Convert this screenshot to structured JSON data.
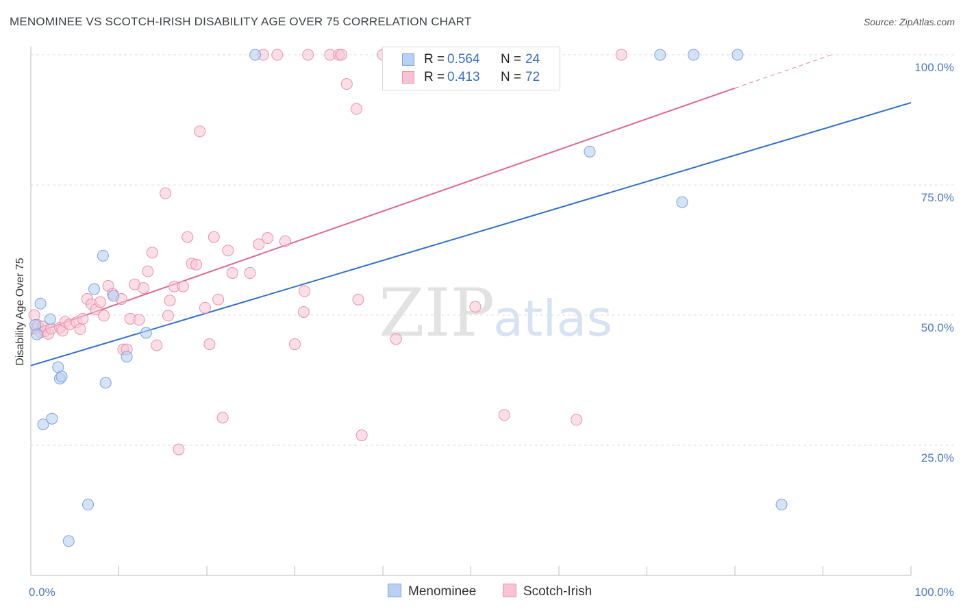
{
  "title": "MENOMINEE VS SCOTCH-IRISH DISABILITY AGE OVER 75 CORRELATION CHART",
  "source": "Source: ZipAtlas.com",
  "watermark": {
    "zip": "ZIP",
    "atlas": "atlas"
  },
  "colors": {
    "menominee_fill": "#b9d0f2",
    "menominee_stroke": "#7aa3de",
    "menominee_line": "#2f6fcf",
    "scotch_fill": "#f8c4d4",
    "scotch_stroke": "#e990ac",
    "scotch_line": "#e0668f",
    "grid": "#dddddd",
    "axis_text": "#4a78c4"
  },
  "legend_top": {
    "rows": [
      {
        "r_label": "R =",
        "r_value": "0.564",
        "n_label": "N =",
        "n_value": "24"
      },
      {
        "r_label": "R =",
        "r_value": "0.413",
        "n_label": "N =",
        "n_value": "72"
      }
    ]
  },
  "legend_bottom": {
    "items": [
      "Menominee",
      "Scotch-Irish"
    ]
  },
  "chart_data": {
    "type": "scatter",
    "title": "MENOMINEE VS SCOTCH-IRISH DISABILITY AGE OVER 75 CORRELATION CHART",
    "xlabel": "",
    "ylabel": "Disability Age Over 75",
    "xlim": [
      0,
      100
    ],
    "ylim": [
      0,
      100
    ],
    "x_tick_labels": [
      "0.0%",
      "100.0%"
    ],
    "y_ticks": [
      25,
      50,
      75,
      100
    ],
    "y_tick_labels": [
      "25.0%",
      "50.0%",
      "75.0%",
      "100.0%"
    ],
    "series": [
      {
        "name": "Menominee",
        "R": 0.564,
        "N": 24,
        "trend": {
          "x": [
            0,
            100
          ],
          "y": [
            40.3,
            90.8
          ]
        },
        "points": [
          {
            "x": 0.5,
            "y": 48.1
          },
          {
            "x": 0.7,
            "y": 46.3
          },
          {
            "x": 1.1,
            "y": 52.2
          },
          {
            "x": 1.4,
            "y": 29.0
          },
          {
            "x": 2.2,
            "y": 49.2
          },
          {
            "x": 2.4,
            "y": 30.1
          },
          {
            "x": 3.1,
            "y": 40.0
          },
          {
            "x": 3.3,
            "y": 37.8
          },
          {
            "x": 3.5,
            "y": 38.2
          },
          {
            "x": 4.3,
            "y": 6.6
          },
          {
            "x": 6.5,
            "y": 13.6
          },
          {
            "x": 7.2,
            "y": 55.0
          },
          {
            "x": 8.2,
            "y": 61.4
          },
          {
            "x": 8.5,
            "y": 37.0
          },
          {
            "x": 9.4,
            "y": 53.7
          },
          {
            "x": 10.9,
            "y": 42.0
          },
          {
            "x": 13.1,
            "y": 46.6
          },
          {
            "x": 25.5,
            "y": 100.0
          },
          {
            "x": 63.5,
            "y": 81.4
          },
          {
            "x": 71.5,
            "y": 100.0
          },
          {
            "x": 74.0,
            "y": 71.7
          },
          {
            "x": 75.3,
            "y": 100.0
          },
          {
            "x": 80.3,
            "y": 100.0
          },
          {
            "x": 85.3,
            "y": 13.6
          }
        ]
      },
      {
        "name": "Scotch-Irish",
        "R": 0.413,
        "N": 72,
        "trend": {
          "x": [
            0,
            80
          ],
          "y": [
            46.3,
            93.6
          ]
        },
        "trend_dashed": {
          "x": [
            80,
            91
          ],
          "y": [
            93.6,
            100.0
          ]
        },
        "points": [
          {
            "x": 0.4,
            "y": 50.0
          },
          {
            "x": 0.6,
            "y": 47.5
          },
          {
            "x": 0.8,
            "y": 48.1
          },
          {
            "x": 1.1,
            "y": 46.7
          },
          {
            "x": 1.4,
            "y": 47.8
          },
          {
            "x": 1.6,
            "y": 46.9
          },
          {
            "x": 2.0,
            "y": 46.4
          },
          {
            "x": 2.3,
            "y": 47.4
          },
          {
            "x": 3.3,
            "y": 47.6
          },
          {
            "x": 3.6,
            "y": 47.0
          },
          {
            "x": 3.9,
            "y": 48.7
          },
          {
            "x": 4.4,
            "y": 48.2
          },
          {
            "x": 5.2,
            "y": 48.6
          },
          {
            "x": 5.6,
            "y": 47.3
          },
          {
            "x": 5.9,
            "y": 49.3
          },
          {
            "x": 6.4,
            "y": 53.1
          },
          {
            "x": 6.9,
            "y": 52.1
          },
          {
            "x": 7.4,
            "y": 51.1
          },
          {
            "x": 7.9,
            "y": 52.5
          },
          {
            "x": 8.3,
            "y": 49.9
          },
          {
            "x": 8.8,
            "y": 55.6
          },
          {
            "x": 9.3,
            "y": 54.1
          },
          {
            "x": 10.3,
            "y": 53.1
          },
          {
            "x": 10.5,
            "y": 43.4
          },
          {
            "x": 10.9,
            "y": 43.4
          },
          {
            "x": 11.3,
            "y": 49.3
          },
          {
            "x": 11.8,
            "y": 55.9
          },
          {
            "x": 12.3,
            "y": 49.1
          },
          {
            "x": 12.8,
            "y": 55.2
          },
          {
            "x": 13.3,
            "y": 58.4
          },
          {
            "x": 13.8,
            "y": 62.0
          },
          {
            "x": 14.3,
            "y": 44.2
          },
          {
            "x": 15.3,
            "y": 73.4
          },
          {
            "x": 15.6,
            "y": 49.9
          },
          {
            "x": 15.8,
            "y": 52.8
          },
          {
            "x": 16.3,
            "y": 55.5
          },
          {
            "x": 16.8,
            "y": 24.2
          },
          {
            "x": 17.3,
            "y": 55.5
          },
          {
            "x": 17.8,
            "y": 65.0
          },
          {
            "x": 18.3,
            "y": 59.9
          },
          {
            "x": 18.8,
            "y": 59.7
          },
          {
            "x": 19.2,
            "y": 85.3
          },
          {
            "x": 19.8,
            "y": 51.4
          },
          {
            "x": 20.3,
            "y": 44.4
          },
          {
            "x": 20.8,
            "y": 65.0
          },
          {
            "x": 21.3,
            "y": 53.0
          },
          {
            "x": 21.8,
            "y": 30.3
          },
          {
            "x": 22.4,
            "y": 62.4
          },
          {
            "x": 22.9,
            "y": 58.1
          },
          {
            "x": 24.9,
            "y": 58.1
          },
          {
            "x": 25.9,
            "y": 63.6
          },
          {
            "x": 26.4,
            "y": 100.0
          },
          {
            "x": 26.9,
            "y": 64.8
          },
          {
            "x": 28.0,
            "y": 100.0
          },
          {
            "x": 28.9,
            "y": 64.2
          },
          {
            "x": 30.0,
            "y": 44.4
          },
          {
            "x": 31.0,
            "y": 50.6
          },
          {
            "x": 31.1,
            "y": 54.6
          },
          {
            "x": 31.5,
            "y": 100.0
          },
          {
            "x": 34.0,
            "y": 100.0
          },
          {
            "x": 35.0,
            "y": 100.0
          },
          {
            "x": 35.3,
            "y": 100.0
          },
          {
            "x": 35.9,
            "y": 94.4
          },
          {
            "x": 37.0,
            "y": 89.6
          },
          {
            "x": 37.2,
            "y": 53.0
          },
          {
            "x": 37.6,
            "y": 26.9
          },
          {
            "x": 40.0,
            "y": 100.0
          },
          {
            "x": 41.5,
            "y": 45.4
          },
          {
            "x": 50.5,
            "y": 51.6
          },
          {
            "x": 53.8,
            "y": 30.8
          },
          {
            "x": 62.0,
            "y": 29.9
          },
          {
            "x": 67.1,
            "y": 100.0
          }
        ]
      }
    ]
  }
}
